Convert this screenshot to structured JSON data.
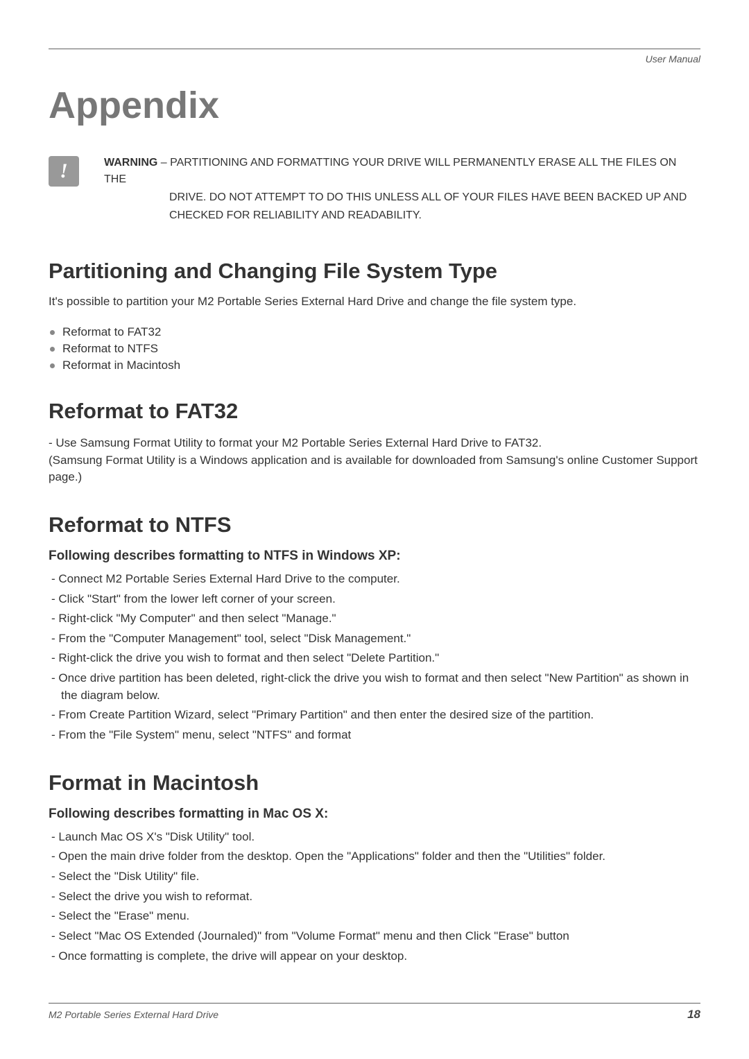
{
  "header": {
    "label": "User Manual"
  },
  "title": "Appendix",
  "warning": {
    "icon_glyph": "!",
    "label": "WARNING",
    "sep": " – ",
    "line1": "PARTITIONING AND FORMATTING YOUR DRIVE WILL PERMANENTLY ERASE ALL THE FILES ON THE",
    "line2": "DRIVE. DO NOT ATTEMPT TO DO THIS UNLESS ALL OF YOUR FILES HAVE BEEN BACKED UP AND",
    "line3": "CHECKED FOR RELIABILITY AND READABILITY."
  },
  "partitioning": {
    "heading": "Partitioning and Changing File System Type",
    "intro": "It's possible to partition your M2 Portable Series External Hard Drive and change the file system type.",
    "bullets": [
      "Reformat to FAT32",
      "Reformat to NTFS",
      "Reformat in Macintosh"
    ]
  },
  "fat32": {
    "heading": "Reformat to FAT32",
    "line1": "- Use Samsung Format Utility to format your M2 Portable Series External Hard Drive to FAT32.",
    "line2": "  (Samsung Format Utility is a Windows application and is available for downloaded from Samsung's online Customer Support page.)"
  },
  "ntfs": {
    "heading": "Reformat to NTFS",
    "subheading": "Following describes formatting to NTFS in Windows XP:",
    "steps": [
      "Connect M2 Portable Series External Hard Drive to the computer.",
      "Click \"Start\" from the lower left corner of your screen.",
      "Right-click \"My Computer\" and then select \"Manage.\"",
      "From the \"Computer Management\" tool, select \"Disk Management.\"",
      "Right-click the drive you wish to format and then select \"Delete Partition.\"",
      "Once drive partition has been deleted, right-click the drive you wish to format and then select \"New Partition\" as shown in the diagram below.",
      "From Create Partition Wizard, select \"Primary Partition\" and then enter the desired size of the partition.",
      "From the \"File System\" menu, select \"NTFS\" and format"
    ]
  },
  "mac": {
    "heading": "Format in Macintosh",
    "subheading": "Following describes formatting in Mac OS X:",
    "steps": [
      "Launch Mac OS X's \"Disk Utility\" tool.",
      "Open the main drive folder from the desktop. Open the \"Applications\" folder and then the \"Utilities\" folder.",
      "Select the \"Disk Utility\" file.",
      "Select the drive you wish to reformat.",
      "Select the \"Erase\" menu.",
      "Select \"Mac OS Extended (Journaled)\" from \"Volume Format\" menu and then Click \"Erase\" button",
      "Once formatting is complete, the drive will appear on your desktop."
    ]
  },
  "footer": {
    "left": "M2 Portable Series External Hard Drive",
    "page_number": "18"
  },
  "colors": {
    "title_color": "#777777",
    "text_color": "#333333",
    "rule_color": "#606060",
    "icon_bg": "#999999",
    "bullet_color": "#888888"
  }
}
